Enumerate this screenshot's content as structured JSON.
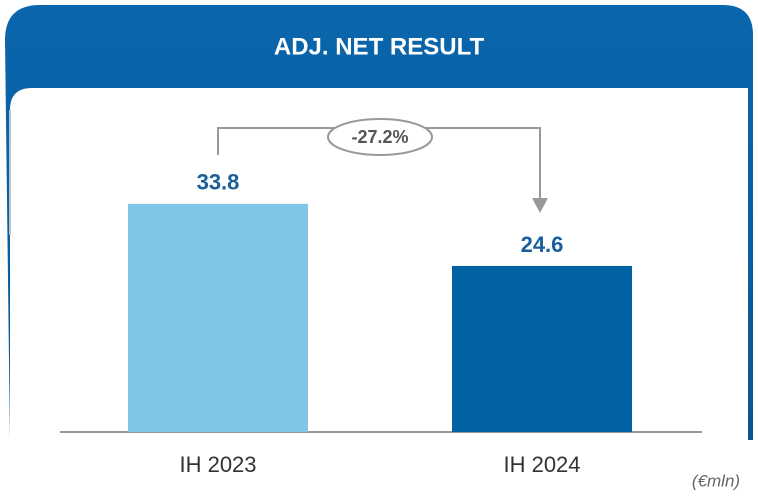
{
  "chart_data": {
    "type": "bar",
    "title": "ADJ. NET RESULT",
    "categories": [
      "IH 2023",
      "IH 2024"
    ],
    "values": [
      33.8,
      24.6
    ],
    "colors": [
      "#7fc6e6",
      "#0062a3"
    ],
    "ylim": [
      0,
      50
    ],
    "annotation": "-27.2%",
    "unit": "(€mln)"
  }
}
